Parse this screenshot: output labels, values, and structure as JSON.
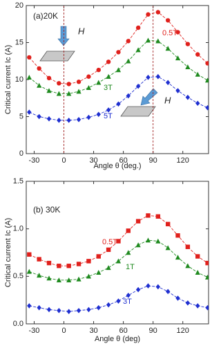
{
  "chart_data": [
    {
      "type": "scatter",
      "title": "(a)20K",
      "xlabel": "Angle θ (deg.)",
      "ylabel": "Critical current Ic (A)",
      "xlim": [
        -38,
        146
      ],
      "ylim": [
        0,
        20
      ],
      "xticks": [
        -30,
        0,
        30,
        60,
        90,
        120
      ],
      "yticks": [
        0,
        5,
        10,
        15,
        20
      ],
      "vlines": [
        0,
        90
      ],
      "x": [
        -35,
        -25,
        -15,
        -5,
        5,
        15,
        25,
        35,
        45,
        55,
        65,
        75,
        85,
        95,
        105,
        115,
        125,
        135,
        145
      ],
      "series": [
        {
          "name": "0.5T",
          "color": "#e0201c",
          "marker": "circle",
          "values": [
            13.0,
            11.5,
            10.2,
            9.5,
            9.4,
            9.7,
            10.4,
            11.3,
            12.4,
            13.7,
            15.2,
            17.0,
            18.8,
            19.1,
            18.0,
            16.4,
            14.8,
            13.4,
            12.2
          ]
        },
        {
          "name": "3T",
          "color": "#1f8a1f",
          "marker": "triangle",
          "values": [
            10.3,
            9.2,
            8.5,
            8.1,
            8.1,
            8.4,
            8.9,
            9.6,
            10.4,
            11.3,
            12.5,
            14.0,
            15.3,
            15.2,
            14.2,
            12.9,
            11.7,
            10.7,
            9.9
          ]
        },
        {
          "name": "5T",
          "color": "#1f2fd0",
          "marker": "diamond",
          "values": [
            5.6,
            5.0,
            4.7,
            4.5,
            4.5,
            4.6,
            4.9,
            5.3,
            5.9,
            6.7,
            7.8,
            9.1,
            10.3,
            10.4,
            9.6,
            8.5,
            7.6,
            6.8,
            6.2
          ]
        }
      ],
      "annotations": [
        "H",
        "H"
      ]
    },
    {
      "type": "scatter",
      "title": "(b) 30K",
      "xlabel": "Angle θ (deg)",
      "ylabel": "Critical current Ic (A)",
      "xlim": [
        -38,
        146
      ],
      "ylim": [
        0,
        1.5
      ],
      "xticks": [
        -30,
        0,
        30,
        60,
        90,
        120
      ],
      "yticks": [
        {
          "value": 0,
          "label": "0.0"
        },
        0.5,
        {
          "value": 1,
          "label": "1.0"
        },
        1.5
      ],
      "x": [
        -35,
        -25,
        -15,
        -5,
        5,
        15,
        25,
        35,
        45,
        55,
        65,
        75,
        85,
        95,
        105,
        115,
        125,
        135,
        145
      ],
      "series": [
        {
          "name": "0.5T",
          "color": "#e0201c",
          "marker": "square",
          "values": [
            0.73,
            0.68,
            0.64,
            0.61,
            0.61,
            0.63,
            0.66,
            0.71,
            0.78,
            0.87,
            0.98,
            1.08,
            1.14,
            1.13,
            1.05,
            0.93,
            0.81,
            0.71,
            0.64
          ]
        },
        {
          "name": "1T",
          "color": "#1f8a1f",
          "marker": "triangle",
          "values": [
            0.55,
            0.51,
            0.48,
            0.46,
            0.46,
            0.47,
            0.5,
            0.54,
            0.59,
            0.66,
            0.75,
            0.83,
            0.88,
            0.87,
            0.8,
            0.7,
            0.61,
            0.54,
            0.49
          ]
        },
        {
          "name": "3T",
          "color": "#1f2fd0",
          "marker": "diamond",
          "values": [
            0.19,
            0.17,
            0.15,
            0.14,
            0.13,
            0.14,
            0.15,
            0.17,
            0.2,
            0.24,
            0.3,
            0.36,
            0.4,
            0.39,
            0.34,
            0.27,
            0.22,
            0.19,
            0.17
          ]
        }
      ]
    }
  ]
}
